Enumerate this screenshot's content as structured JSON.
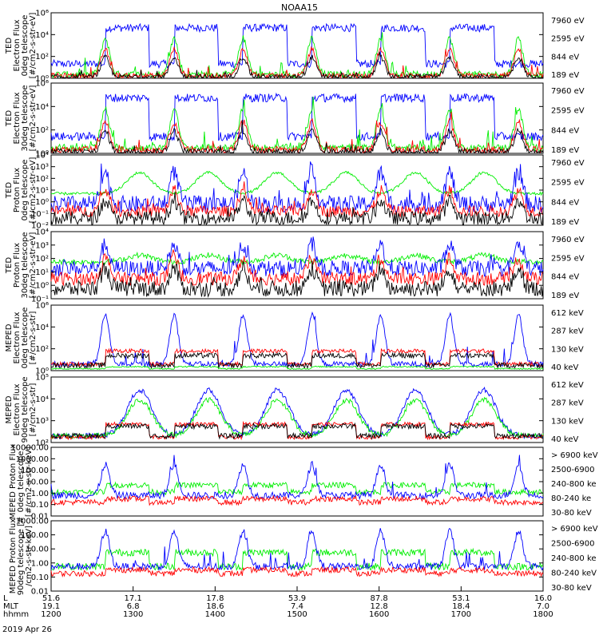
{
  "title": "NOAA15",
  "colors": {
    "blue": "#0000ff",
    "red": "#ff0000",
    "green": "#00ee00",
    "black": "#000000",
    "magenta": "#ff00ff"
  },
  "x_axis": {
    "rows": [
      {
        "label": "L",
        "values": [
          "51.6",
          "17.1",
          "17.8",
          "53.9",
          "87.8",
          "53.1",
          "16.0"
        ]
      },
      {
        "label": "MLT",
        "values": [
          "19.1",
          "6.8",
          "18.6",
          "7.4",
          "12.8",
          "18.4",
          "7.0"
        ]
      },
      {
        "label": "hhmm",
        "values": [
          "1200",
          "1300",
          "1400",
          "1500",
          "1600",
          "1700",
          "1800"
        ]
      }
    ],
    "date": "2019 Apr 26"
  },
  "chart_data": [
    {
      "type": "line",
      "ylabel": [
        "TED",
        "Electron Flux",
        "0deg telescope",
        "[#/cm2-s-str-eV]"
      ],
      "yscale": "log",
      "ylim": [
        1,
        1000000
      ],
      "yticks": [
        "10⁰",
        "10²",
        "10⁴",
        "10⁶"
      ],
      "legend": [
        {
          "label": "7960 eV",
          "color": "#000000"
        },
        {
          "label": "2595 eV",
          "color": "#ff0000"
        },
        {
          "label": "844 eV",
          "color": "#00ee00"
        },
        {
          "label": "189 eV",
          "color": "#0000ff"
        }
      ]
    },
    {
      "type": "line",
      "ylabel": [
        "TED",
        "Electron Flux",
        "30deg telescope",
        "[#/cm2-s-str-eV]"
      ],
      "yscale": "log",
      "ylim": [
        1,
        1000000
      ],
      "yticks": [
        "10⁰",
        "10²",
        "10⁴",
        "10⁶"
      ],
      "legend": [
        {
          "label": "7960 eV",
          "color": "#000000"
        },
        {
          "label": "2595 eV",
          "color": "#ff0000"
        },
        {
          "label": "844 eV",
          "color": "#00ee00"
        },
        {
          "label": "189 eV",
          "color": "#0000ff"
        }
      ]
    },
    {
      "type": "line",
      "ylabel": [
        "TED",
        "Proton Flux",
        "0deg telescope",
        "[#/cm2-s-str-eV]"
      ],
      "yscale": "log",
      "ylim": [
        0.01,
        10000
      ],
      "yticks": [
        "10⁻²",
        "10⁻¹",
        "10⁰",
        "10¹",
        "10²",
        "10³",
        "10⁴"
      ],
      "legend": [
        {
          "label": "7960 eV",
          "color": "#000000"
        },
        {
          "label": "2595 eV",
          "color": "#ff0000"
        },
        {
          "label": "844 eV",
          "color": "#00ee00"
        },
        {
          "label": "189 eV",
          "color": "#0000ff"
        }
      ]
    },
    {
      "type": "line",
      "ylabel": [
        "TED",
        "Proton Flux",
        "30deg telescope",
        "[#/cm2-s-str-eV]"
      ],
      "yscale": "log",
      "ylim": [
        0.1,
        10000
      ],
      "yticks": [
        "10⁻¹",
        "10⁰",
        "10¹",
        "10²",
        "10³",
        "10⁴"
      ],
      "legend": [
        {
          "label": "7960 eV",
          "color": "#000000"
        },
        {
          "label": "2595 eV",
          "color": "#ff0000"
        },
        {
          "label": "844 eV",
          "color": "#00ee00"
        },
        {
          "label": "189 eV",
          "color": "#0000ff"
        }
      ]
    },
    {
      "type": "line",
      "ylabel": [
        "MEPED",
        "Electron Flux",
        "0deg telescope",
        "[#/cm2-s-str]"
      ],
      "yscale": "log",
      "ylim": [
        1,
        1000000
      ],
      "yticks": [
        "10⁰",
        "10²",
        "10⁴",
        "10⁶"
      ],
      "legend": [
        {
          "label": "612 keV",
          "color": "#000000"
        },
        {
          "label": "287 keV",
          "color": "#ff0000"
        },
        {
          "label": "130 keV",
          "color": "#00ee00"
        },
        {
          "label": "40 keV",
          "color": "#0000ff"
        }
      ]
    },
    {
      "type": "line",
      "ylabel": [
        "MEPED",
        "Electron Flux",
        "90deg telescope",
        "[#/cm2-s-str]"
      ],
      "yscale": "log",
      "ylim": [
        10,
        1000000
      ],
      "yticks": [
        "10²",
        "10³",
        "10⁴",
        "10⁵"
      ],
      "legend": [
        {
          "label": "612 keV",
          "color": "#000000"
        },
        {
          "label": "287 keV",
          "color": "#ff0000"
        },
        {
          "label": "130 keV",
          "color": "#00ee00"
        },
        {
          "label": "40 keV",
          "color": "#0000ff"
        }
      ]
    },
    {
      "type": "line",
      "ylabel": [
        "MEPED Proton Flux",
        "0deg telescope",
        "[#/cm2-s-str-keV]"
      ],
      "yscale": "log",
      "ylim": [
        0.01,
        10000
      ],
      "yticks": [
        "10000.00",
        "1000.00",
        "100.00",
        "10.00",
        "1.00",
        "0.10",
        "0.01"
      ],
      "legend": [
        {
          "label": "> 6900 keV",
          "color": "#ff00ff"
        },
        {
          "label": "2500-6900",
          "color": "#000000"
        },
        {
          "label": "240-800 ke",
          "color": "#ff0000"
        },
        {
          "label": "80-240 ke",
          "color": "#00ee00"
        },
        {
          "label": "30-80 keV",
          "color": "#0000ff"
        }
      ]
    },
    {
      "type": "line",
      "ylabel": [
        "MEPED Proton Flux",
        "90deg telescope [#",
        "/cm2-s-str-keV]"
      ],
      "yscale": "log",
      "ylim": [
        0.01,
        1000
      ],
      "yticks": [
        "1000.00",
        "100.00",
        "10.00",
        "1.00",
        "0.10",
        "0.01"
      ],
      "legend": [
        {
          "label": "> 6900 keV",
          "color": "#ff00ff"
        },
        {
          "label": "2500-6900",
          "color": "#000000"
        },
        {
          "label": "240-800 ke",
          "color": "#ff0000"
        },
        {
          "label": "80-240 keV",
          "color": "#00ee00"
        },
        {
          "label": "30-80 keV",
          "color": "#0000ff"
        }
      ]
    }
  ]
}
